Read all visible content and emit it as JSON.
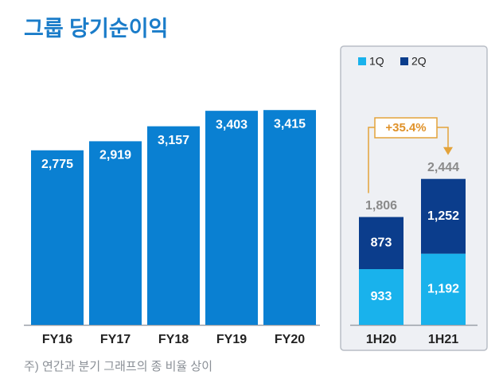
{
  "title": "그룹 당기순이익",
  "note": "주) 연간과 분기 그래프의 종 비율 상이",
  "chart_data": [
    {
      "type": "bar",
      "categories": [
        "FY16",
        "FY17",
        "FY18",
        "FY19",
        "FY20"
      ],
      "values": [
        2775,
        2919,
        3157,
        3403,
        3415
      ],
      "value_labels": [
        "2,775",
        "2,919",
        "3,157",
        "3,403",
        "3,415"
      ],
      "color": "#0a80d2"
    },
    {
      "type": "stacked_bar",
      "categories": [
        "1H20",
        "1H21"
      ],
      "series": [
        {
          "name": "1Q",
          "color": "#19b2ec",
          "values": [
            933,
            1192
          ],
          "value_labels": [
            "933",
            "1,192"
          ]
        },
        {
          "name": "2Q",
          "color": "#0b3d8c",
          "values": [
            873,
            1252
          ],
          "value_labels": [
            "873",
            "1,252"
          ]
        }
      ],
      "totals": [
        1806,
        2444
      ],
      "total_labels": [
        "1,806",
        "2,444"
      ],
      "annotation": "+35.4%"
    }
  ]
}
